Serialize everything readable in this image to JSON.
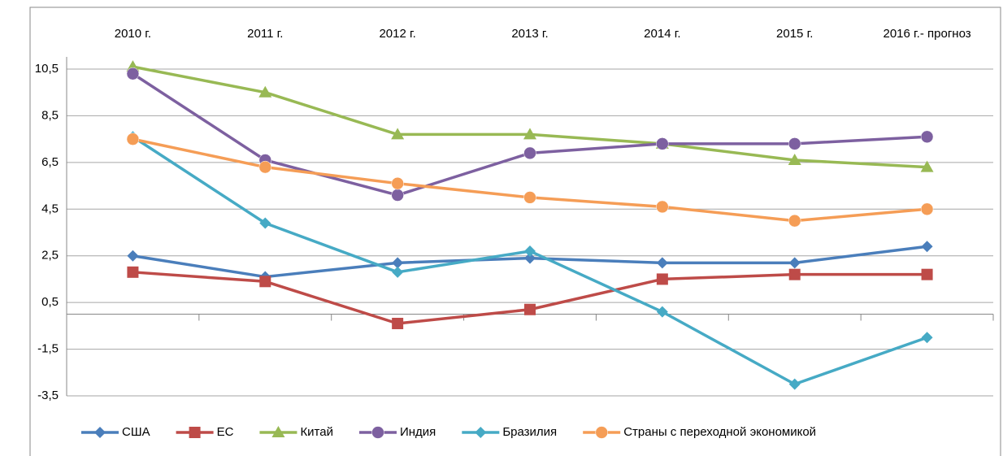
{
  "chart_data": {
    "type": "line",
    "categories": [
      "2010 г.",
      "2011 г.",
      "2012 г.",
      "2013 г.",
      "2014 г.",
      "2015 г.",
      "2016 г.- прогноз"
    ],
    "series": [
      {
        "name": "США",
        "color": "#4a7ebb",
        "marker": "diamond",
        "values": [
          2.5,
          1.6,
          2.2,
          2.4,
          2.2,
          2.2,
          2.9
        ]
      },
      {
        "name": "ЕС",
        "color": "#be4b48",
        "marker": "square",
        "values": [
          1.8,
          1.4,
          -0.4,
          0.2,
          1.5,
          1.7,
          1.7
        ]
      },
      {
        "name": "Китай",
        "color": "#98b954",
        "marker": "triangle",
        "values": [
          10.6,
          9.5,
          7.7,
          7.7,
          7.3,
          6.6,
          6.3
        ]
      },
      {
        "name": "Индия",
        "color": "#7d60a0",
        "marker": "circle",
        "values": [
          10.3,
          6.6,
          5.1,
          6.9,
          7.3,
          7.3,
          7.6
        ]
      },
      {
        "name": "Бразилия",
        "color": "#46aac5",
        "marker": "diamond",
        "values": [
          7.6,
          3.9,
          1.8,
          2.7,
          0.1,
          -3.0,
          -1.0
        ]
      },
      {
        "name": "Страны с переходной экономикой",
        "color": "#f59d56",
        "marker": "circle",
        "values": [
          7.5,
          6.3,
          5.6,
          5.0,
          4.6,
          4.0,
          4.5
        ]
      }
    ],
    "ylim": [
      -3.5,
      10.5
    ],
    "yticks": [
      {
        "value": -3.5,
        "label": "-3,5"
      },
      {
        "value": -1.5,
        "label": "-1,5"
      },
      {
        "value": 0.5,
        "label": "0,5"
      },
      {
        "value": 2.5,
        "label": "2,5"
      },
      {
        "value": 4.5,
        "label": "4,5"
      },
      {
        "value": 6.5,
        "label": "6,5"
      },
      {
        "value": 8.5,
        "label": "8,5"
      },
      {
        "value": 10.5,
        "label": "10,5"
      }
    ],
    "grid": true,
    "legend": "bottom"
  }
}
